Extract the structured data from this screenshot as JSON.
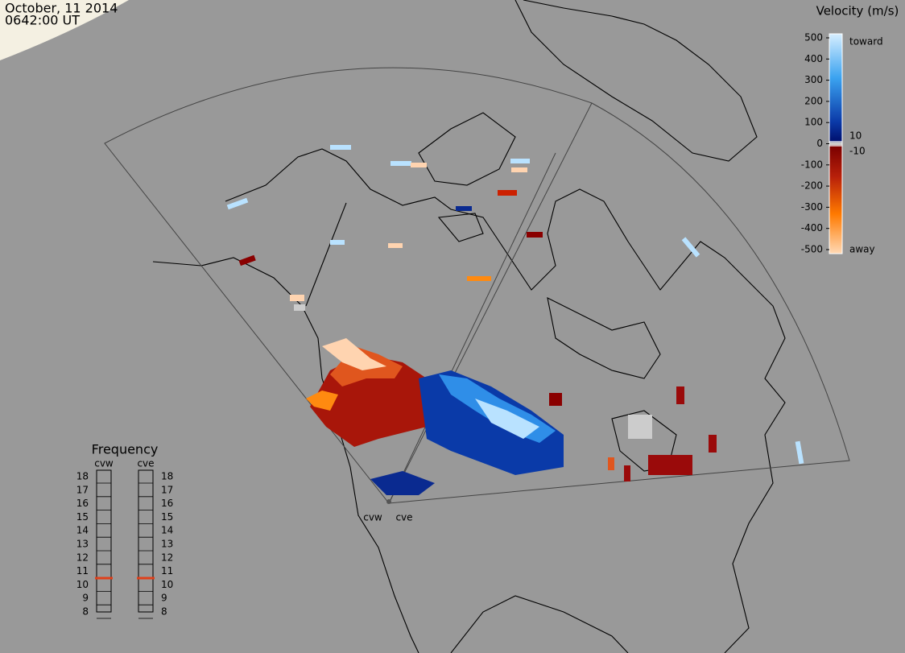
{
  "header": {
    "date": "October, 11 2014",
    "time": "0642:00 UT"
  },
  "colorbar": {
    "title": "Velocity (m/s)",
    "ticks": [
      500,
      400,
      300,
      200,
      100,
      0,
      -100,
      -200,
      -300,
      -400,
      -500
    ],
    "inner_ticks": [
      10,
      -10
    ],
    "top_label": "toward",
    "bottom_label": "away"
  },
  "frequency": {
    "title": "Frequency",
    "ticks": [
      18,
      17,
      16,
      15,
      14,
      13,
      12,
      11,
      10,
      9,
      8
    ],
    "radars": [
      {
        "name": "cvw",
        "value": 10.5
      },
      {
        "name": "cve",
        "value": 10.5
      }
    ]
  },
  "stations": [
    "cvw",
    "cve"
  ]
}
